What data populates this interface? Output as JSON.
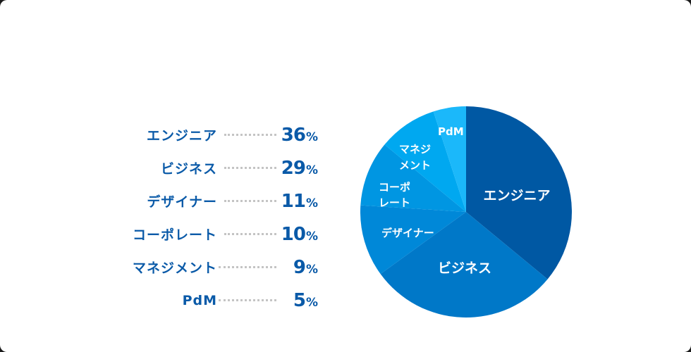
{
  "chart_data": {
    "type": "pie",
    "title": "",
    "categories": [
      "エンジニア",
      "ビジネス",
      "デザイナー",
      "コーポレート",
      "マネジメント",
      "PdM"
    ],
    "values": [
      36,
      29,
      11,
      10,
      9,
      5
    ],
    "unit": "%",
    "colors": [
      "#0058a3",
      "#0078c8",
      "#0088d8",
      "#0096e2",
      "#00a8f0",
      "#1bb8fa"
    ],
    "slice_labels": [
      "エンジニア",
      "ビジネス",
      "デザイナー",
      "コーポ\nレート",
      "マネジ\nメント",
      "PdM"
    ],
    "legend_position": "left"
  },
  "legend": [
    {
      "label": "エンジニア",
      "value": "36",
      "unit": "%"
    },
    {
      "label": "ビジネス",
      "value": "29",
      "unit": "%"
    },
    {
      "label": "デザイナー",
      "value": "11",
      "unit": "%"
    },
    {
      "label": "コーポレート",
      "value": "10",
      "unit": "%"
    },
    {
      "label": "マネジメント",
      "value": "9",
      "unit": "%"
    },
    {
      "label": "PdM",
      "value": "5",
      "unit": "%"
    }
  ],
  "pie_labels": {
    "engineer": "エンジニア",
    "business": "ビジネス",
    "designer": "デザイナー",
    "corporate_1": "コーポ",
    "corporate_2": "レート",
    "management_1": "マネジ",
    "management_2": "メント",
    "pdm": "PdM"
  }
}
